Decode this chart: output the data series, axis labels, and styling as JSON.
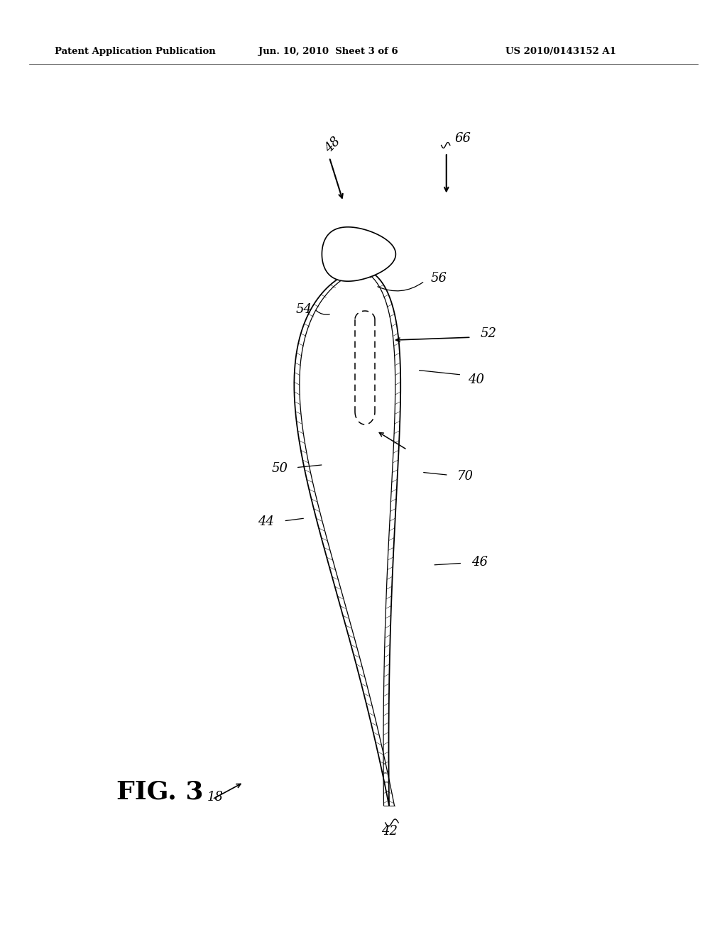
{
  "header_left": "Patent Application Publication",
  "header_mid": "Jun. 10, 2010  Sheet 3 of 6",
  "header_right": "US 2010/0143152 A1",
  "fig_label": "FIG. 3",
  "bg_color": "#ffffff"
}
